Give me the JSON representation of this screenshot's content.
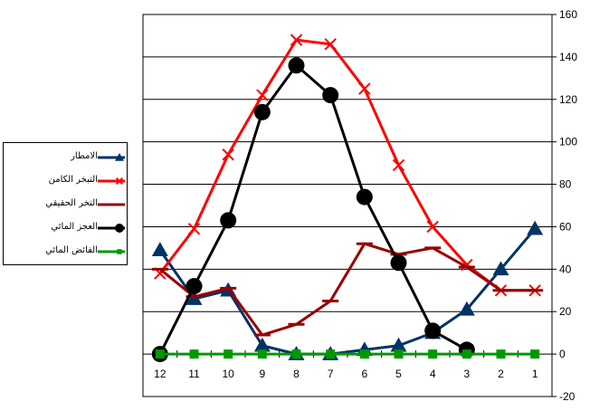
{
  "chart_data": {
    "type": "line",
    "title": "",
    "xlabel": "",
    "ylabel": "",
    "categories": [
      "12",
      "11",
      "10",
      "9",
      "8",
      "7",
      "6",
      "5",
      "4",
      "3",
      "2",
      "1"
    ],
    "ylim": [
      -20,
      160
    ],
    "yticks": [
      -20,
      0,
      20,
      40,
      60,
      80,
      100,
      120,
      140,
      160
    ],
    "grid": "horizontal",
    "legend": "left",
    "series": [
      {
        "name": "الامطار",
        "color": "#003366",
        "marker": "triangle",
        "values": [
          49,
          26,
          30,
          4,
          0,
          0,
          2,
          4,
          10,
          21,
          40,
          59
        ]
      },
      {
        "name": "التبخر الكامن",
        "color": "#ff0000",
        "marker": "cross",
        "values": [
          38,
          59,
          94,
          122,
          148,
          146,
          125,
          89,
          60,
          42,
          30,
          30
        ]
      },
      {
        "name": "التخر الحقيقي",
        "color": "#990000",
        "marker": "dash",
        "values": [
          40,
          27,
          31,
          9,
          14,
          25,
          52,
          47,
          50,
          41,
          30,
          30
        ]
      },
      {
        "name": "العجز المائي",
        "color": "#000000",
        "marker": "circle",
        "values": [
          0,
          32,
          63,
          114,
          136,
          122,
          74,
          43,
          11,
          2,
          null,
          null
        ]
      },
      {
        "name": "الفائض المائي",
        "color": "#009900",
        "marker": "square",
        "values": [
          0,
          0,
          0,
          0,
          0,
          0,
          0,
          0,
          0,
          0,
          0,
          0
        ]
      }
    ]
  }
}
